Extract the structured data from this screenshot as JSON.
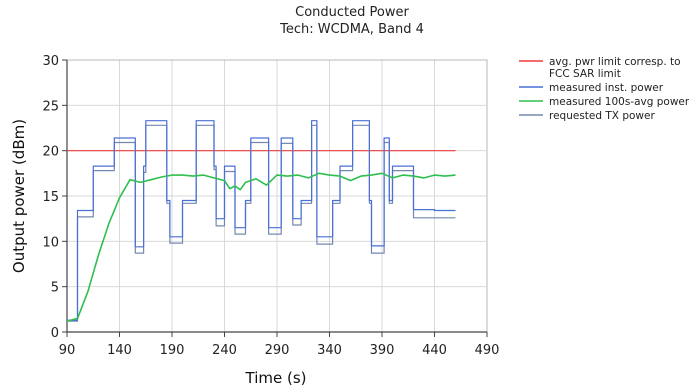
{
  "chart_data": {
    "type": "line",
    "title": "Conducted Power",
    "subtitle": "Tech: WCDMA, Band 4",
    "xlabel": "Time (s)",
    "ylabel": "Output power (dBm)",
    "xlim": [
      90,
      490
    ],
    "ylim": [
      0,
      30
    ],
    "xticks": [
      90,
      140,
      190,
      240,
      290,
      340,
      390,
      440,
      490
    ],
    "yticks": [
      0,
      5,
      10,
      15,
      20,
      25,
      30
    ],
    "grid": true,
    "legend_position": "right",
    "series": [
      {
        "name": "avg. pwr limit corresp. to FCC SAR limit",
        "color": "#ee3b3b",
        "x": [
          90,
          460
        ],
        "y": [
          20,
          20
        ]
      },
      {
        "name": "measured inst. power",
        "color": "#4a6fd6",
        "x": [
          90,
          100,
          100,
          115,
          115,
          135,
          135,
          155,
          155,
          163,
          163,
          165,
          165,
          185,
          185,
          188,
          188,
          200,
          200,
          213,
          213,
          230,
          230,
          232,
          232,
          240,
          240,
          250,
          250,
          260,
          260,
          265,
          265,
          282,
          282,
          294,
          294,
          305,
          305,
          313,
          313,
          323,
          323,
          328,
          328,
          343,
          343,
          350,
          350,
          362,
          362,
          378,
          378,
          380,
          380,
          392,
          392,
          397,
          397,
          400,
          400,
          420,
          420,
          440,
          440,
          460
        ],
        "y": [
          1.3,
          1.3,
          13.4,
          13.4,
          18.3,
          18.3,
          21.4,
          21.4,
          9.4,
          9.4,
          18.3,
          18.3,
          23.3,
          23.3,
          14.5,
          14.5,
          10.5,
          10.5,
          14.5,
          14.5,
          23.3,
          23.3,
          18.3,
          18.3,
          12.5,
          12.5,
          18.3,
          18.3,
          11.5,
          11.5,
          14.5,
          14.5,
          21.4,
          21.4,
          11.5,
          11.5,
          21.4,
          21.4,
          12.5,
          12.5,
          14.5,
          14.5,
          23.3,
          23.3,
          10.5,
          10.5,
          14.5,
          14.5,
          18.3,
          18.3,
          23.3,
          23.3,
          14.5,
          14.5,
          9.5,
          9.5,
          21.4,
          21.4,
          14.5,
          14.5,
          18.3,
          18.3,
          13.5,
          13.5,
          13.4,
          13.4
        ]
      },
      {
        "name": "measured 100s-avg power",
        "color": "#2fbf4f",
        "x": [
          90,
          100,
          110,
          120,
          130,
          140,
          150,
          160,
          170,
          180,
          190,
          200,
          210,
          220,
          230,
          240,
          245,
          250,
          255,
          260,
          270,
          280,
          290,
          300,
          310,
          320,
          330,
          340,
          350,
          360,
          370,
          380,
          390,
          400,
          410,
          420,
          430,
          440,
          450,
          460
        ],
        "y": [
          1.2,
          1.5,
          4.5,
          8.5,
          12.0,
          14.8,
          16.8,
          16.5,
          16.8,
          17.1,
          17.3,
          17.3,
          17.2,
          17.3,
          17.0,
          16.7,
          15.8,
          16.1,
          15.7,
          16.5,
          16.9,
          16.2,
          17.3,
          17.2,
          17.3,
          17.0,
          17.5,
          17.3,
          17.2,
          16.7,
          17.2,
          17.3,
          17.5,
          17.0,
          17.3,
          17.2,
          17.0,
          17.3,
          17.2,
          17.3
        ]
      },
      {
        "name": "requested TX power",
        "color": "#7388b0",
        "x": [
          90,
          100,
          100,
          115,
          115,
          135,
          135,
          155,
          155,
          163,
          163,
          165,
          165,
          185,
          185,
          188,
          188,
          200,
          200,
          213,
          213,
          230,
          230,
          232,
          232,
          240,
          240,
          250,
          250,
          260,
          260,
          265,
          265,
          282,
          282,
          294,
          294,
          305,
          305,
          313,
          313,
          323,
          323,
          328,
          328,
          343,
          343,
          350,
          350,
          362,
          362,
          378,
          378,
          380,
          380,
          392,
          392,
          397,
          397,
          400,
          400,
          420,
          420,
          440,
          440,
          460
        ],
        "y": [
          1.2,
          1.2,
          12.7,
          12.7,
          17.8,
          17.8,
          20.9,
          20.9,
          8.7,
          8.7,
          17.6,
          17.6,
          22.8,
          22.8,
          14.2,
          14.2,
          9.8,
          9.8,
          14.2,
          14.2,
          22.8,
          22.8,
          17.9,
          17.9,
          11.7,
          11.7,
          17.7,
          17.7,
          10.8,
          10.8,
          14.2,
          14.2,
          20.9,
          20.9,
          10.8,
          10.8,
          20.8,
          20.8,
          11.8,
          11.8,
          14.2,
          14.2,
          22.8,
          22.8,
          9.7,
          9.7,
          14.2,
          14.2,
          17.8,
          17.8,
          22.8,
          22.8,
          14.2,
          14.2,
          8.7,
          8.7,
          20.9,
          20.9,
          14.2,
          14.2,
          17.8,
          17.8,
          12.6,
          12.6,
          12.6,
          12.6
        ]
      }
    ]
  }
}
